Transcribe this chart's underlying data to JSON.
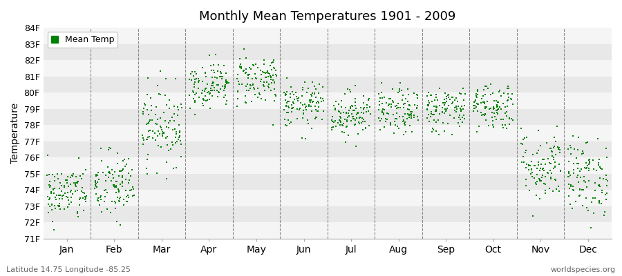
{
  "title": "Monthly Mean Temperatures 1901 - 2009",
  "ylabel": "Temperature",
  "ymin": 71,
  "ymax": 84,
  "months": [
    "Jan",
    "Feb",
    "Mar",
    "Apr",
    "May",
    "Jun",
    "Jul",
    "Aug",
    "Sep",
    "Oct",
    "Nov",
    "Dec"
  ],
  "subtitle_left": "Latitude 14.75 Longitude -85.25",
  "subtitle_right": "worldspecies.org",
  "legend_label": "Mean Temp",
  "marker_color": "#008000",
  "bg_color": "#ffffff",
  "band_color_light": "#f5f5f5",
  "band_color_dark": "#e8e8e8",
  "month_means": [
    73.8,
    74.2,
    78.0,
    80.5,
    80.8,
    79.2,
    78.7,
    78.8,
    79.0,
    79.2,
    75.5,
    74.8
  ],
  "month_stds": [
    0.85,
    1.1,
    1.2,
    0.7,
    0.8,
    0.7,
    0.7,
    0.7,
    0.7,
    0.75,
    1.1,
    1.2
  ],
  "n_years": 109,
  "seed": 42
}
